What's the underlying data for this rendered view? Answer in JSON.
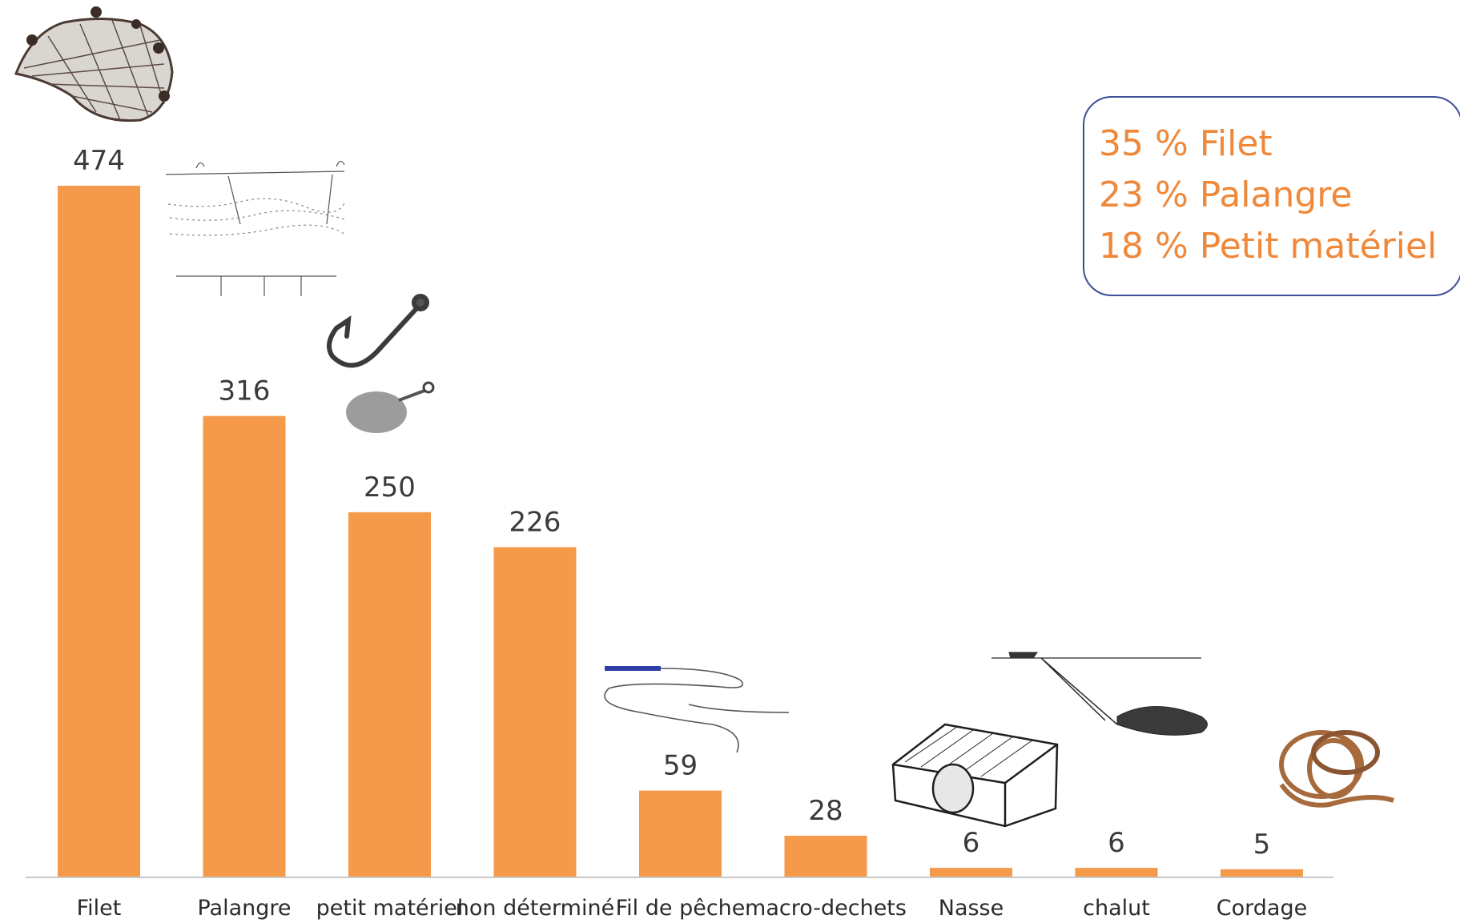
{
  "chart_data": {
    "type": "bar",
    "categories": [
      "Filet",
      "Palangre",
      "petit matériel",
      "non déterminé",
      "Fil de pêche",
      "macro-dechets",
      "Nasse",
      "chalut",
      "Cordage"
    ],
    "values": [
      474,
      316,
      250,
      226,
      59,
      28,
      6,
      6,
      5
    ],
    "title": "",
    "xlabel": "",
    "ylabel": "",
    "ylim": [
      0,
      474
    ],
    "grid": false,
    "bar_color": "#f49a4a",
    "axis_color": "#c8c8c8",
    "label_color": "#3a3a3a"
  },
  "callout": {
    "lines": [
      "35 % Filet",
      "23 % Palangre",
      "18 % Petit matériel"
    ],
    "text_color": "#f0883a",
    "border_color": "#3d4f99"
  },
  "illustrations": [
    "fishing-net-icon",
    "longline-diagram-icon",
    "fish-hook-icon",
    "fishing-weight-icon",
    "fishing-line-icon",
    "fish-trap-icon",
    "trawl-net-icon",
    "rope-coil-icon"
  ]
}
